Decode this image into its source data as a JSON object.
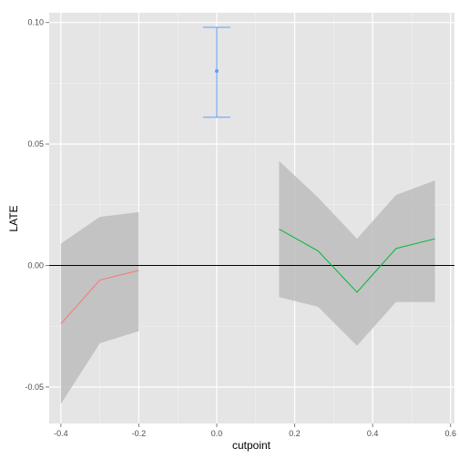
{
  "chart_data": {
    "type": "line",
    "title": "",
    "xlabel": "cutpoint",
    "ylabel": "LATE",
    "xlim": [
      -0.43,
      0.61
    ],
    "ylim": [
      -0.065,
      0.104
    ],
    "x_ticks": [
      -0.4,
      -0.2,
      0.0,
      0.2,
      0.4,
      0.6
    ],
    "x_tick_labels": [
      "-0.4",
      "-0.2",
      "0.0",
      "0.2",
      "0.4",
      "0.6"
    ],
    "y_ticks": [
      -0.05,
      0.0,
      0.05,
      0.1
    ],
    "y_tick_labels": [
      "-0.05",
      "0.00",
      "0.05",
      "0.10"
    ],
    "grid": true,
    "legend": "none",
    "reference_line": {
      "y": 0.0,
      "color": "#000000"
    },
    "ribbons": [
      {
        "x": [
          -0.4,
          -0.3,
          -0.2
        ],
        "lower": [
          -0.057,
          -0.032,
          -0.027
        ],
        "upper": [
          0.009,
          0.02,
          0.022
        ],
        "fill": "#bdbdbd"
      },
      {
        "x": [
          0.16,
          0.26,
          0.36,
          0.46,
          0.56
        ],
        "lower": [
          -0.013,
          -0.017,
          -0.033,
          -0.015,
          -0.015
        ],
        "upper": [
          0.043,
          0.028,
          0.011,
          0.029,
          0.035
        ],
        "fill": "#bdbdbd"
      }
    ],
    "series": [
      {
        "x": [
          -0.4,
          -0.3,
          -0.2
        ],
        "values": [
          -0.024,
          -0.006,
          -0.002
        ],
        "color": "#f8766d"
      },
      {
        "x": [
          0.16,
          0.26,
          0.36,
          0.46,
          0.56
        ],
        "values": [
          0.015,
          0.006,
          -0.011,
          0.007,
          0.011
        ],
        "color": "#00ba38"
      }
    ],
    "error_bar": {
      "x": 0.0,
      "y": 0.08,
      "lower": 0.061,
      "upper": 0.098,
      "color": "#619cff"
    }
  }
}
